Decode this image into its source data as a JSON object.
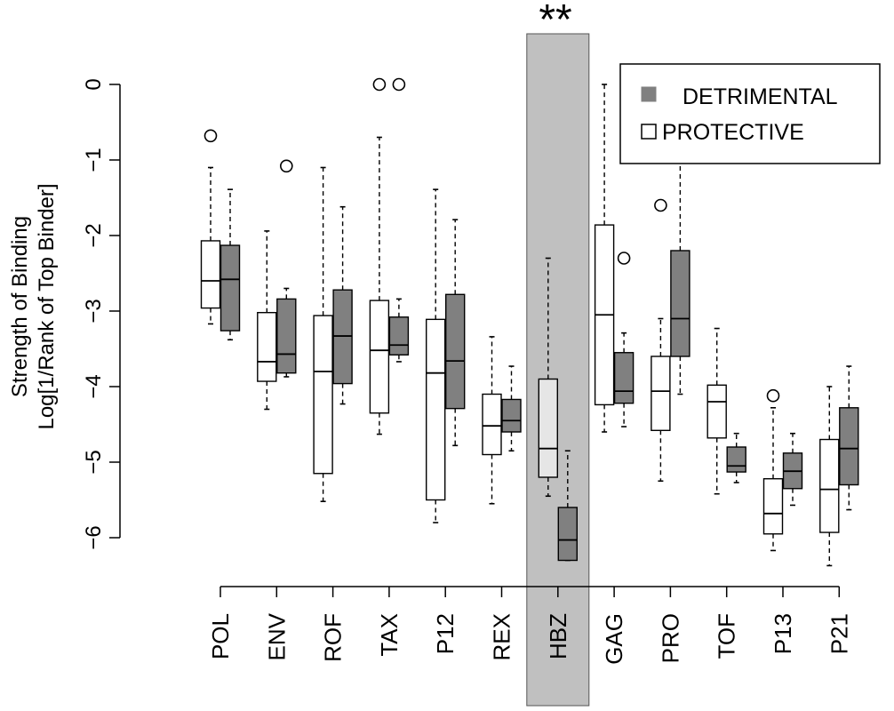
{
  "chart_data": {
    "type": "boxplot",
    "ylabel_line1": "Strength of Binding",
    "ylabel_line2": "Log[1/Rank of Top Binder]",
    "ylim": [
      -6.8,
      0.2
    ],
    "yticks": [
      0,
      -1,
      -2,
      -3,
      -4,
      -5,
      -6
    ],
    "ytick_labels": [
      "0",
      "−1",
      "−2",
      "−3",
      "−4",
      "−5",
      "−6"
    ],
    "categories": [
      "POL",
      "ENV",
      "ROF",
      "TAX",
      "P12",
      "REX",
      "HBZ",
      "GAG",
      "PRO",
      "TOF",
      "P13",
      "P21"
    ],
    "highlighted_category": "HBZ",
    "significance_label": "**",
    "legend": {
      "position": "top-right",
      "entries": [
        {
          "label": "DETRIMENTAL",
          "color": "#808080"
        },
        {
          "label": "PROTECTIVE",
          "color": "#ffffff"
        }
      ]
    },
    "colors": {
      "detrimental": "#808080",
      "protective": "#ffffff",
      "hbz_protective": "#e6e6e6",
      "highlight": "#c0c0c0"
    },
    "series": [
      {
        "name": "PROTECTIVE",
        "boxes": [
          {
            "category": "POL",
            "whisker_low": -3.17,
            "q1": -2.96,
            "median": -2.6,
            "q3": -2.07,
            "whisker_high": -1.1,
            "outliers": [
              -0.68
            ]
          },
          {
            "category": "ENV",
            "whisker_low": -4.3,
            "q1": -3.93,
            "median": -3.67,
            "q3": -3.02,
            "whisker_high": -1.94,
            "outliers": []
          },
          {
            "category": "ROF",
            "whisker_low": -5.52,
            "q1": -5.15,
            "median": -3.8,
            "q3": -3.06,
            "whisker_high": -1.1,
            "outliers": []
          },
          {
            "category": "TAX",
            "whisker_low": -4.63,
            "q1": -4.35,
            "median": -3.52,
            "q3": -2.86,
            "whisker_high": -0.7,
            "outliers": [
              0.0
            ]
          },
          {
            "category": "P12",
            "whisker_low": -5.8,
            "q1": -5.5,
            "median": -3.82,
            "q3": -3.11,
            "whisker_high": -1.39,
            "outliers": []
          },
          {
            "category": "REX",
            "whisker_low": -5.55,
            "q1": -4.9,
            "median": -4.52,
            "q3": -4.1,
            "whisker_high": -3.34,
            "outliers": []
          },
          {
            "category": "HBZ",
            "whisker_low": -5.45,
            "q1": -5.2,
            "median": -4.82,
            "q3": -3.9,
            "whisker_high": -2.3,
            "outliers": []
          },
          {
            "category": "GAG",
            "whisker_low": -4.6,
            "q1": -4.24,
            "median": -3.05,
            "q3": -1.86,
            "whisker_high": 0.0,
            "outliers": []
          },
          {
            "category": "PRO",
            "whisker_low": -5.25,
            "q1": -4.58,
            "median": -4.06,
            "q3": -3.6,
            "whisker_high": -3.1,
            "outliers": [
              -1.6
            ]
          },
          {
            "category": "TOF",
            "whisker_low": -5.42,
            "q1": -4.68,
            "median": -4.2,
            "q3": -3.98,
            "whisker_high": -3.23,
            "outliers": []
          },
          {
            "category": "P13",
            "whisker_low": -6.17,
            "q1": -5.95,
            "median": -5.68,
            "q3": -5.22,
            "whisker_high": -4.28,
            "outliers": [
              -4.12
            ]
          },
          {
            "category": "P21",
            "whisker_low": -6.37,
            "q1": -5.93,
            "median": -5.36,
            "q3": -4.7,
            "whisker_high": -4.0,
            "outliers": []
          }
        ]
      },
      {
        "name": "DETRIMENTAL",
        "boxes": [
          {
            "category": "POL",
            "whisker_low": -3.38,
            "q1": -3.26,
            "median": -2.58,
            "q3": -2.13,
            "whisker_high": -1.39,
            "outliers": []
          },
          {
            "category": "ENV",
            "whisker_low": -3.87,
            "q1": -3.82,
            "median": -3.57,
            "q3": -2.84,
            "whisker_high": -2.7,
            "outliers": [
              -1.08
            ]
          },
          {
            "category": "ROF",
            "whisker_low": -4.23,
            "q1": -3.96,
            "median": -3.33,
            "q3": -2.72,
            "whisker_high": -1.62,
            "outliers": []
          },
          {
            "category": "TAX",
            "whisker_low": -3.67,
            "q1": -3.58,
            "median": -3.45,
            "q3": -3.08,
            "whisker_high": -2.84,
            "outliers": [
              0.0
            ]
          },
          {
            "category": "P12",
            "whisker_low": -4.78,
            "q1": -4.29,
            "median": -3.66,
            "q3": -2.78,
            "whisker_high": -1.79,
            "outliers": []
          },
          {
            "category": "REX",
            "whisker_low": -4.85,
            "q1": -4.6,
            "median": -4.45,
            "q3": -4.17,
            "whisker_high": -3.73,
            "outliers": []
          },
          {
            "category": "HBZ",
            "whisker_low": -6.3,
            "q1": -6.3,
            "median": -6.03,
            "q3": -5.6,
            "whisker_high": -4.85,
            "outliers": []
          },
          {
            "category": "GAG",
            "whisker_low": -4.53,
            "q1": -4.22,
            "median": -4.06,
            "q3": -3.55,
            "whisker_high": -3.29,
            "outliers": [
              -2.3
            ]
          },
          {
            "category": "PRO",
            "whisker_low": -4.1,
            "q1": -3.6,
            "median": -3.1,
            "q3": -2.2,
            "whisker_high": -0.7,
            "outliers": []
          },
          {
            "category": "TOF",
            "whisker_low": -5.27,
            "q1": -5.13,
            "median": -5.05,
            "q3": -4.8,
            "whisker_high": -4.62,
            "outliers": []
          },
          {
            "category": "P13",
            "whisker_low": -5.57,
            "q1": -5.35,
            "median": -5.12,
            "q3": -4.88,
            "whisker_high": -4.62,
            "outliers": []
          },
          {
            "category": "P21",
            "whisker_low": -5.63,
            "q1": -5.3,
            "median": -4.82,
            "q3": -4.28,
            "whisker_high": -3.73,
            "outliers": []
          }
        ]
      }
    ]
  }
}
